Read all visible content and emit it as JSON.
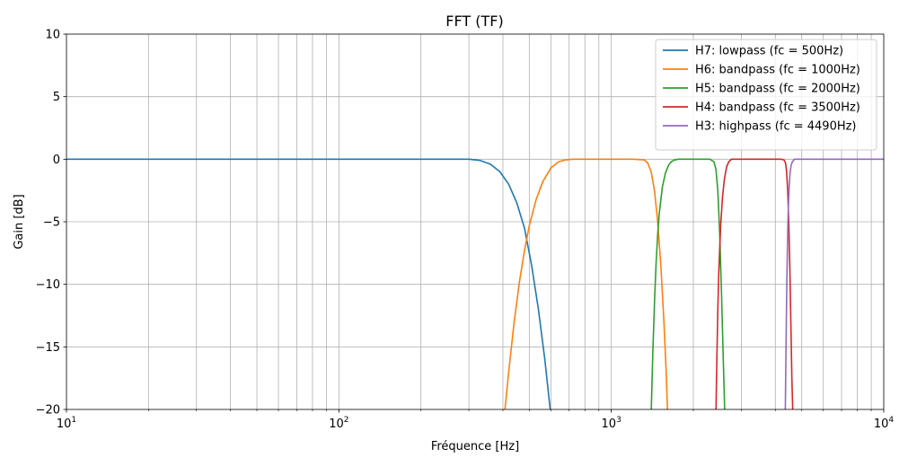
{
  "chart_data": {
    "type": "line",
    "title": "FFT (TF)",
    "xlabel": "Fréquence [Hz]",
    "ylabel": "Gain [dB]",
    "xscale": "log",
    "xlim": [
      10,
      10000
    ],
    "ylim": [
      -20,
      10
    ],
    "grid": true,
    "grid_minor_x": true,
    "legend_position": "top-right",
    "x_ticks": [
      {
        "value": 10,
        "base": "10",
        "exp": "1"
      },
      {
        "value": 100,
        "base": "10",
        "exp": "2"
      },
      {
        "value": 1000,
        "base": "10",
        "exp": "3"
      },
      {
        "value": 10000,
        "base": "10",
        "exp": "4"
      }
    ],
    "y_ticks": [
      {
        "value": 10,
        "label": "10"
      },
      {
        "value": 5,
        "label": "5"
      },
      {
        "value": 0,
        "label": "0"
      },
      {
        "value": -5,
        "label": "−5"
      },
      {
        "value": -10,
        "label": "−10"
      },
      {
        "value": -15,
        "label": "−15"
      },
      {
        "value": -20,
        "label": "−20"
      }
    ],
    "series": [
      {
        "name": "H7: lowpass (fc = 500Hz)",
        "color": "#1f77b4",
        "x": [
          10,
          100,
          200,
          300,
          330,
          360,
          390,
          420,
          450,
          480,
          510,
          540,
          570,
          600
        ],
        "y": [
          0,
          0,
          0,
          0,
          -0.1,
          -0.4,
          -1.0,
          -2.0,
          -3.5,
          -5.5,
          -8.5,
          -12.0,
          -16.0,
          -20.5
        ]
      },
      {
        "name": "H6: bandpass (fc = 1000Hz)",
        "color": "#ff7f0e",
        "x": [
          405,
          420,
          440,
          460,
          480,
          500,
          530,
          560,
          600,
          640,
          680,
          720,
          1200,
          1320,
          1360,
          1400,
          1440,
          1480,
          1520,
          1560,
          1590,
          1610
        ],
        "y": [
          -20.5,
          -17.0,
          -13.0,
          -9.8,
          -7.3,
          -5.3,
          -3.2,
          -1.8,
          -0.7,
          -0.2,
          -0.05,
          0,
          0,
          -0.05,
          -0.3,
          -1.0,
          -2.5,
          -5.0,
          -8.5,
          -13.0,
          -17.0,
          -20.5
        ]
      },
      {
        "name": "H5: bandpass (fc = 2000Hz)",
        "color": "#2ca02c",
        "x": [
          1400,
          1420,
          1440,
          1460,
          1480,
          1500,
          1540,
          1580,
          1620,
          1660,
          1700,
          1760,
          2300,
          2380,
          2420,
          2460,
          2500,
          2540,
          2580,
          2610
        ],
        "y": [
          -20.5,
          -15.5,
          -11.5,
          -8.3,
          -6.0,
          -4.3,
          -2.2,
          -1.1,
          -0.5,
          -0.2,
          -0.07,
          0,
          0,
          -0.2,
          -0.8,
          -2.5,
          -6.0,
          -11.0,
          -16.5,
          -20.5
        ]
      },
      {
        "name": "H4: bandpass (fc = 3500Hz)",
        "color": "#d62728",
        "x": [
          2420,
          2440,
          2460,
          2480,
          2520,
          2560,
          2600,
          2650,
          2700,
          2760,
          4200,
          4300,
          4360,
          4400,
          4440,
          4480,
          4520,
          4560,
          4600,
          4640
        ],
        "y": [
          -20.5,
          -16.0,
          -12.0,
          -9.0,
          -5.3,
          -3.0,
          -1.6,
          -0.6,
          -0.2,
          0,
          0,
          -0.05,
          -0.3,
          -1.0,
          -2.5,
          -5.0,
          -8.5,
          -13.0,
          -17.5,
          -20.5
        ]
      },
      {
        "name": "H3: highpass (fc = 4490Hz)",
        "color": "#9467bd",
        "x": [
          4350,
          4370,
          4390,
          4410,
          4430,
          4450,
          4470,
          4500,
          4530,
          4570,
          4620,
          4700,
          10000
        ],
        "y": [
          -20.5,
          -16.5,
          -12.8,
          -9.6,
          -7.0,
          -5.0,
          -3.5,
          -2.0,
          -1.1,
          -0.5,
          -0.2,
          0,
          0
        ]
      }
    ]
  }
}
